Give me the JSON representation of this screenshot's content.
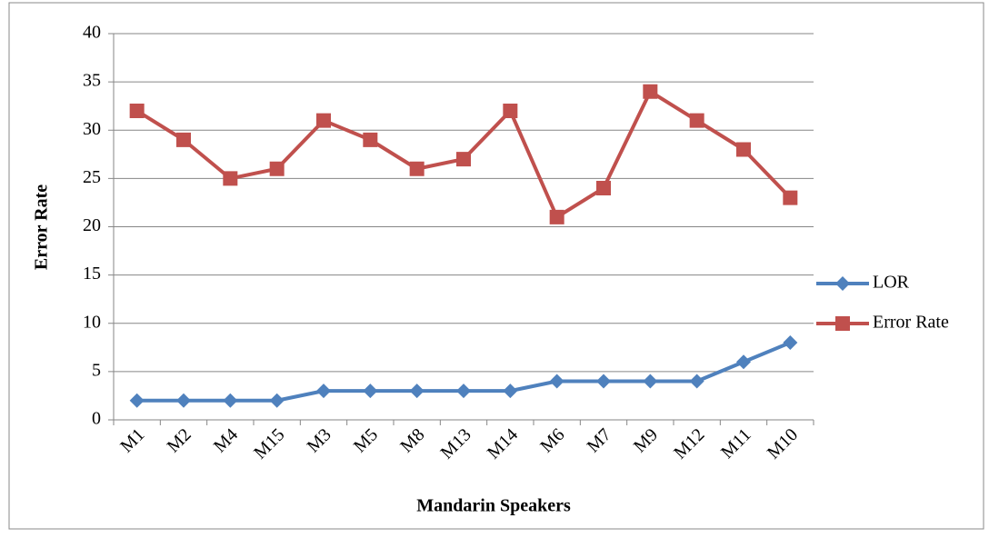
{
  "chart_data": {
    "type": "line",
    "x_label": "Mandarin Speakers",
    "y_label": "Error Rate",
    "categories": [
      "M1",
      "M2",
      "M4",
      "M15",
      "M3",
      "M5",
      "M8",
      "M13",
      "M14",
      "M6",
      "M7",
      "M9",
      "M12",
      "M11",
      "M10"
    ],
    "series": [
      {
        "name": "LOR",
        "color": "#4f81bd",
        "marker": "diamond",
        "values": [
          2,
          2,
          2,
          2,
          3,
          3,
          3,
          3,
          3,
          4,
          4,
          4,
          4,
          6,
          8
        ]
      },
      {
        "name": "Error Rate",
        "color": "#c0504d",
        "marker": "square",
        "values": [
          32,
          29,
          25,
          26,
          31,
          29,
          26,
          27,
          32,
          21,
          24,
          34,
          31,
          28,
          23
        ]
      }
    ],
    "ylim": [
      0,
      40
    ],
    "yticks": [
      0,
      5,
      10,
      15,
      20,
      25,
      30,
      35,
      40
    ],
    "grid": true,
    "legend": "right"
  }
}
